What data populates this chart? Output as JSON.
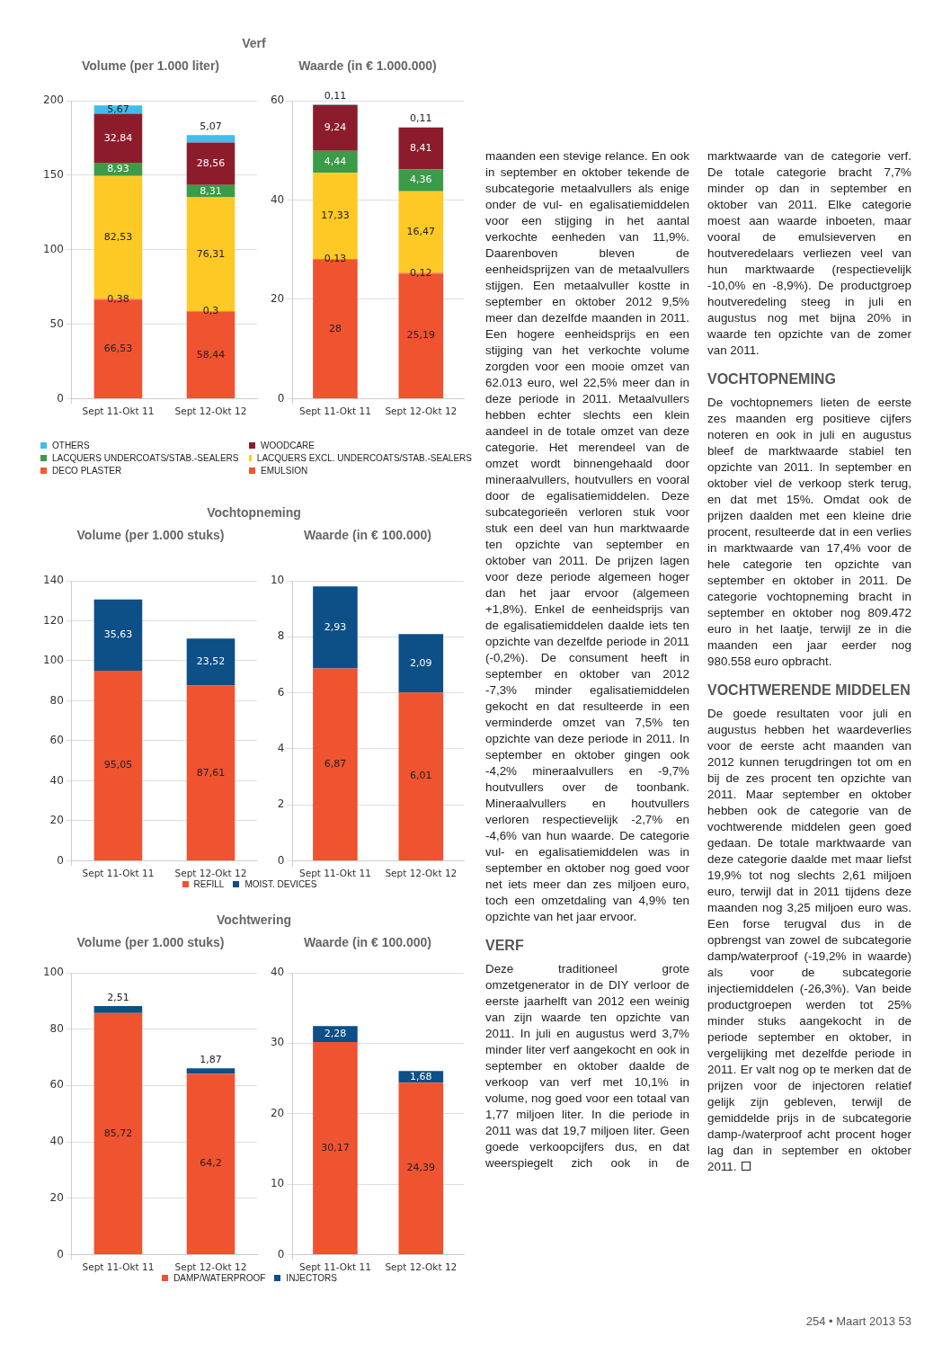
{
  "chart_data": [
    {
      "type": "bar",
      "stacked": true,
      "title": "Verf",
      "subtitle": "Volume (per 1.000 liter)",
      "categories": [
        "Sept 11-Okt 11",
        "Sept 12-Okt 12"
      ],
      "series": [
        {
          "name": "EMULSION",
          "color": "#ef5330",
          "values": [
            66.53,
            58.44
          ],
          "value_labels": [
            "66,53",
            "58,44"
          ]
        },
        {
          "name": "DECO PLASTER",
          "color": "#f15a2e",
          "values": [
            0.38,
            0.3
          ],
          "value_labels": [
            "0,38",
            "0,3"
          ]
        },
        {
          "name": "LACQUERS EXCL. UNDERCOATS/STAB.-SEALERS",
          "color": "#fec925",
          "values": [
            82.53,
            76.31
          ],
          "value_labels": [
            "82,53",
            "76,31"
          ]
        },
        {
          "name": "LACQUERS UNDERCOATS/STAB.-SEALERS",
          "color": "#3b9b48",
          "values": [
            8.93,
            8.31
          ],
          "value_labels": [
            "8,93",
            "8,31"
          ]
        },
        {
          "name": "WOODCARE",
          "color": "#8c1c2c",
          "values": [
            32.84,
            28.56
          ],
          "value_labels": [
            "32,84",
            "28,56"
          ]
        },
        {
          "name": "OTHERS",
          "color": "#41bdea",
          "values": [
            5.67,
            5.07
          ],
          "value_labels": [
            "5,67",
            "5,07"
          ]
        }
      ],
      "ylim": [
        0,
        200
      ],
      "yticks": [
        0,
        50,
        100,
        150,
        200
      ],
      "grid": true,
      "legend": "bottom",
      "annotations": [
        "maanden een stevige relance. En ook in september en oktober tekende de subcategorie metaalvullers als enige onder de vul- en egalisatiemiddelen voor een stijging in het aantal verkochte eenheden van 11,9%. Daarenboven bleven de eenheidsprijzen van de metaalvullers stijgen. Een metaalvuller kostte in september en oktober 2012 9,5% meer dan dezelfde maanden in 2011. Een hogere eenheidsprijs en een stijging van het verkochte volume zorgden voor een mooie omzet van 62.013 euro, wel 22,5% meer dan in deze periode in 2011. Metaalvullers hebben echter slechts een klein aandeel in de totale omzet van deze categorie. Het merendeel van de omzet wordt binnengehaald door mineraalvullers, houtvullers en vooral door de egalisatiemiddelen. Deze subcategorieën verloren stuk voor stuk een deel van hun marktwaarde ten opzichte van september en oktober van 2011. De prijzen lagen voor deze periode algemeen hoger dan het jaar ervoor (algemeen +1,8%). Enkel de eenheidsprijs van de egalisatiemiddelen daalde iets ten opzichte van dezelfde periode in 2011 (-0,2%). De consument heeft in september en oktober van 2012 -7,3% minder egalisatiemiddelen gekocht en dat resulteerde in een verminderde omzet van 7,5% ten opzichte van deze periode in 2011. In september en oktober gingen ook -4,2% mineraalvullers en -9,7% houtvullers over de toonbank. Mineraalvullers en houtvullers verloren respectievelijk -2,7% en -4,6% van hun waarde. De categorie vul- en egalisatiemiddelen was in september en oktober nog goed voor net iets meer dan zes miljoen euro, toch een omzetdaling van 4,9% ten opzichte van het jaar ervoor.",
        "VERF",
        "Deze traditioneel grote omzetgenerator in de DIY verloor de eerste jaarhelft van 2012 een weinig van zijn waarde ten opzichte van 2011. In juli en augustus werd 3,7% minder liter verf aangekocht en ook in september en oktober daalde de verkoop van verf met 10,1% in volume, nog goed voor een totaal van 1,77 miljoen liter. In die periode in 2011 was dat 19,7 miljoen liter. Geen goede verkoopcijfers dus, en dat weerspiegelt zich ook in de marktwaarde van de categorie verf. De totale categorie bracht 7,7% minder op dan in september en oktober van 2011. Elke categorie moest aan waarde inboeten, maar vooral de emulsieverven en houtveredelaars verliezen veel van hun marktwaarde (respectievelijk -10,0% en -8,9%). De productgroep houtveredeling steeg in juli en augustus nog met bijna 20% in waarde ten opzichte van de zomer van 2011.",
        "VOCHTOPNEMING",
        "De vochtopnemers lieten de eerste zes maanden erg positieve cijfers noteren en ook in juli en augustus bleef de marktwaarde stabiel ten opzichte van 2011. In september en oktober viel de verkoop sterk terug, en dat met 15%. Omdat ook de prijzen daalden met een kleine drie procent, resulteerde dat in een verlies in marktwaarde van 17,4% voor de hele categorie ten opzichte van september en oktober in 2011. De categorie vochtopneming bracht in september en oktober nog 809.472 euro in het laatje, terwijl ze in die maanden een jaar eerder nog 980.558 euro opbracht.",
        "VOCHTWERENDE MIDDELEN",
        "De goede resultaten voor juli en augustus hebben het waardeverlies voor de eerste acht maanden van 2012 kunnen terugdringen tot om en bij de zes procent ten opzichte van 2011. Maar september en oktober hebben ook de categorie van de vochtwerende middelen geen goed gedaan. De totale marktwaarde van deze categorie daalde met maar liefst 19,9% tot nog slechts 2,61 miljoen euro, terwijl dat in 2011 tijdens deze maanden nog 3,25 miljoen euro was. Een forse terugval dus in de opbrengst van zowel de subcategorie damp/waterproof (-19,2% in waarde) als voor de subcategorie injectiemiddelen (-26,3%). Van beide productgroepen werden tot 25% minder stuks aangekocht in de periode september en oktober, in vergelijking met dezelfde periode in 2011. Er valt nog op te merken dat de prijzen voor de injectoren relatief gelijk zijn gebleven, terwijl de gemiddelde prijs in de subcategorie damp-/waterproof acht procent hoger lag dan in september en oktober 2011.",
        "254 • Maart 2013 53"
      ]
    },
    {
      "type": "bar",
      "stacked": true,
      "subtitle": "Waarde (in € 1.000.000)",
      "categories": [
        "Sept 11-Okt 11",
        "Sept 12-Okt 12"
      ],
      "series": [
        {
          "color": "#ef5330",
          "values": [
            28,
            25.19
          ],
          "value_labels": [
            "28",
            "25,19"
          ]
        },
        {
          "color": "#f15a2e",
          "values": [
            0.13,
            0.12
          ],
          "value_labels": [
            "0,13",
            "0,12"
          ]
        },
        {
          "color": "#fec925",
          "values": [
            17.33,
            16.47
          ],
          "value_labels": [
            "17,33",
            "16,47"
          ]
        },
        {
          "color": "#3b9b48",
          "values": [
            4.44,
            4.36
          ],
          "value_labels": [
            "4,44",
            "4,36"
          ]
        },
        {
          "color": "#8c1c2c",
          "values": [
            9.24,
            8.41
          ],
          "value_labels": [
            "9,24",
            "8,41"
          ]
        },
        {
          "color": "#41bdea",
          "values": [
            0.11,
            0.11
          ],
          "value_labels": [
            "0,11",
            "0,11"
          ]
        }
      ],
      "ylim": [
        0,
        60
      ],
      "yticks": [
        0,
        20,
        40,
        60
      ],
      "grid": true
    },
    {
      "type": "bar",
      "stacked": true,
      "title": "Vochtopneming",
      "subtitle": "Volume (per 1.000 stuks)",
      "categories": [
        "Sept 11-Okt 11",
        "Sept 12-Okt 12"
      ],
      "series": [
        {
          "name": "REFILL",
          "color": "#ef5330",
          "values": [
            95.05,
            87.61
          ],
          "value_labels": [
            "95,05",
            "87,61"
          ]
        },
        {
          "name": "MOIST. DEVICES",
          "color": "#0d4f87",
          "values": [
            35.63,
            23.52
          ],
          "value_labels": [
            "35,63",
            "23,52"
          ]
        }
      ],
      "ylim": [
        0,
        140
      ],
      "yticks": [
        0,
        20,
        40,
        60,
        80,
        100,
        120,
        140
      ],
      "grid": true,
      "legend": "bottom"
    },
    {
      "type": "bar",
      "stacked": true,
      "subtitle": "Waarde (in € 100.000)",
      "categories": [
        "Sept 11-Okt 11",
        "Sept 12-Okt 12"
      ],
      "series": [
        {
          "color": "#ef5330",
          "values": [
            6.87,
            6.01
          ],
          "value_labels": [
            "6,87",
            "6,01"
          ]
        },
        {
          "color": "#0d4f87",
          "values": [
            2.93,
            2.09
          ],
          "value_labels": [
            "2,93",
            "2,09"
          ]
        }
      ],
      "ylim": [
        0,
        10
      ],
      "yticks": [
        0,
        2,
        4,
        6,
        8,
        10
      ],
      "grid": true
    },
    {
      "type": "bar",
      "stacked": true,
      "title": "Vochtwering",
      "subtitle": "Volume (per 1.000 stuks)",
      "categories": [
        "Sept 11-Okt 11",
        "Sept 12-Okt 12"
      ],
      "series": [
        {
          "name": "DAMP/WATERPROOF",
          "color": "#ef5330",
          "values": [
            85.72,
            64.2
          ],
          "value_labels": [
            "85,72",
            "64,2"
          ]
        },
        {
          "name": "INJECTORS",
          "color": "#0d4f87",
          "values": [
            2.51,
            1.87
          ],
          "value_labels": [
            "2,51",
            "1,87"
          ]
        }
      ],
      "ylim": [
        0,
        100
      ],
      "yticks": [
        0,
        20,
        40,
        60,
        80,
        100
      ],
      "grid": true,
      "legend": "bottom"
    },
    {
      "type": "bar",
      "stacked": true,
      "subtitle": "Waarde (in € 100.000)",
      "categories": [
        "Sept 11-Okt 11",
        "Sept 12-Okt 12"
      ],
      "series": [
        {
          "color": "#ef5330",
          "values": [
            30.17,
            24.39
          ],
          "value_labels": [
            "30,17",
            "24,39"
          ]
        },
        {
          "color": "#0d4f87",
          "values": [
            2.28,
            1.68
          ],
          "value_labels": [
            "2,28",
            "1,68"
          ]
        }
      ],
      "ylim": [
        0,
        40
      ],
      "yticks": [
        0,
        10,
        20,
        30,
        40
      ],
      "grid": true
    }
  ]
}
